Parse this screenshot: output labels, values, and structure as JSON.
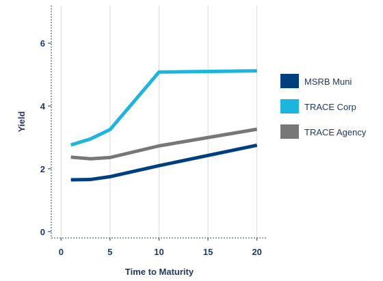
{
  "chart_data": {
    "type": "line",
    "xlabel": "Time to Maturity",
    "ylabel": "Yield",
    "xlim": [
      -1,
      21
    ],
    "ylim": [
      -0.2,
      7.2
    ],
    "xticks": [
      0,
      5,
      10,
      15,
      20
    ],
    "yticks": [
      0,
      2,
      4,
      6
    ],
    "grid": "vertical",
    "legend_position": "right",
    "series": [
      {
        "name": "MSRB Muni",
        "color": "#003f7f",
        "x": [
          1,
          3,
          5,
          10,
          20
        ],
        "y": [
          1.65,
          1.66,
          1.75,
          2.1,
          2.75
        ]
      },
      {
        "name": "TRACE Corp",
        "color": "#1bb5dd",
        "x": [
          1,
          3,
          5,
          10,
          20
        ],
        "y": [
          2.76,
          2.95,
          3.25,
          5.08,
          5.12
        ]
      },
      {
        "name": "TRACE Agency",
        "color": "#777777",
        "x": [
          1,
          3,
          5,
          10,
          20
        ],
        "y": [
          2.37,
          2.32,
          2.36,
          2.73,
          3.26
        ]
      }
    ]
  }
}
